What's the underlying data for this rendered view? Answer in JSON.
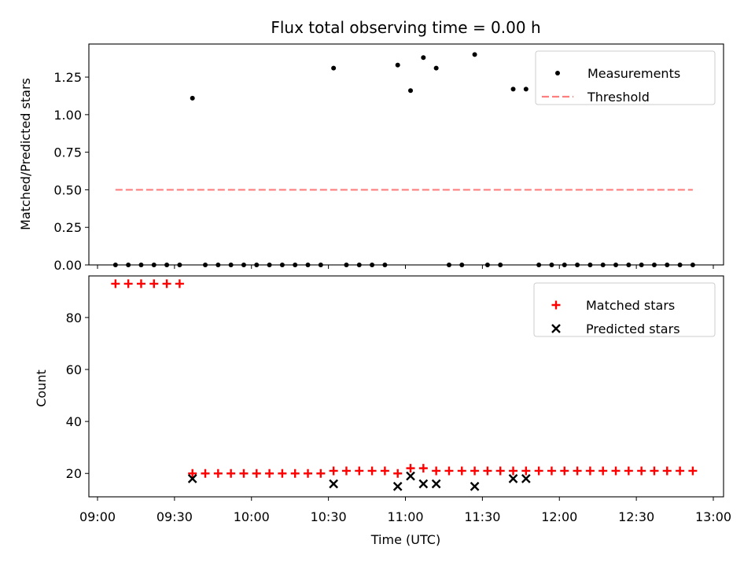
{
  "chart_data": [
    {
      "type": "scatter",
      "title": "Flux total observing time = 0.00 h",
      "xlabel": "",
      "ylabel": "Matched/Predicted stars",
      "ylim": [
        0,
        1.47
      ],
      "yticks": [
        "0.00",
        "0.25",
        "0.50",
        "0.75",
        "1.00",
        "1.25"
      ],
      "ytick_values": [
        0,
        0.25,
        0.5,
        0.75,
        1.0,
        1.25
      ],
      "legend_position": "top-right",
      "series": [
        {
          "name": "Measurements",
          "marker": "dot",
          "color": "#000000",
          "x": [
            "09:07",
            "09:12",
            "09:17",
            "09:22",
            "09:27",
            "09:32",
            "09:37",
            "09:42",
            "09:47",
            "09:52",
            "09:57",
            "10:02",
            "10:07",
            "10:12",
            "10:17",
            "10:22",
            "10:27",
            "10:32",
            "10:37",
            "10:42",
            "10:47",
            "10:52",
            "10:57",
            "11:02",
            "11:07",
            "11:12",
            "11:17",
            "11:22",
            "11:27",
            "11:32",
            "11:37",
            "11:42",
            "11:47",
            "11:52",
            "11:57",
            "12:02",
            "12:07",
            "12:12",
            "12:17",
            "12:22",
            "12:27",
            "12:32",
            "12:37",
            "12:42",
            "12:47",
            "12:52"
          ],
          "y": [
            0,
            0,
            0,
            0,
            0,
            0,
            1.11,
            0,
            0,
            0,
            0,
            0,
            0,
            0,
            0,
            0,
            0,
            1.31,
            0,
            0,
            0,
            0,
            1.33,
            1.16,
            1.38,
            1.31,
            0,
            0,
            1.4,
            0,
            0,
            1.17,
            1.17,
            0,
            0,
            0,
            0,
            0,
            0,
            0,
            0,
            0,
            0,
            0,
            0,
            0
          ]
        },
        {
          "name": "Threshold",
          "marker": "dashed-line",
          "color": "#ff7f7f",
          "x": [
            "09:07",
            "12:52"
          ],
          "y": [
            0.5,
            0.5
          ]
        }
      ]
    },
    {
      "type": "scatter",
      "title": "",
      "xlabel": "Time (UTC)",
      "ylabel": "Count",
      "xlim": [
        "09:00",
        "13:00"
      ],
      "xticks": [
        "09:00",
        "09:30",
        "10:00",
        "10:30",
        "11:00",
        "11:30",
        "12:00",
        "12:30",
        "13:00"
      ],
      "ylim": [
        11,
        96
      ],
      "yticks": [
        "20",
        "40",
        "60",
        "80"
      ],
      "ytick_values": [
        20,
        40,
        60,
        80
      ],
      "legend_position": "top-right",
      "series": [
        {
          "name": "Matched stars",
          "marker": "plus",
          "color": "#ff0000",
          "x": [
            "09:07",
            "09:12",
            "09:17",
            "09:22",
            "09:27",
            "09:32",
            "09:37",
            "09:42",
            "09:47",
            "09:52",
            "09:57",
            "10:02",
            "10:07",
            "10:12",
            "10:17",
            "10:22",
            "10:27",
            "10:32",
            "10:37",
            "10:42",
            "10:47",
            "10:52",
            "10:57",
            "11:02",
            "11:07",
            "11:12",
            "11:17",
            "11:22",
            "11:27",
            "11:32",
            "11:37",
            "11:42",
            "11:47",
            "11:52",
            "11:57",
            "12:02",
            "12:07",
            "12:12",
            "12:17",
            "12:22",
            "12:27",
            "12:32",
            "12:37",
            "12:42",
            "12:47",
            "12:52"
          ],
          "y": [
            93,
            93,
            93,
            93,
            93,
            93,
            20,
            20,
            20,
            20,
            20,
            20,
            20,
            20,
            20,
            20,
            20,
            21,
            21,
            21,
            21,
            21,
            20,
            22,
            22,
            21,
            21,
            21,
            21,
            21,
            21,
            21,
            21,
            21,
            21,
            21,
            21,
            21,
            21,
            21,
            21,
            21,
            21,
            21,
            21,
            21
          ]
        },
        {
          "name": "Predicted stars",
          "marker": "x",
          "color": "#000000",
          "x": [
            "09:37",
            "10:32",
            "10:57",
            "11:02",
            "11:07",
            "11:12",
            "11:27",
            "11:42",
            "11:47"
          ],
          "y": [
            18,
            16,
            15,
            19,
            16,
            16,
            15,
            18,
            18
          ]
        }
      ]
    }
  ]
}
